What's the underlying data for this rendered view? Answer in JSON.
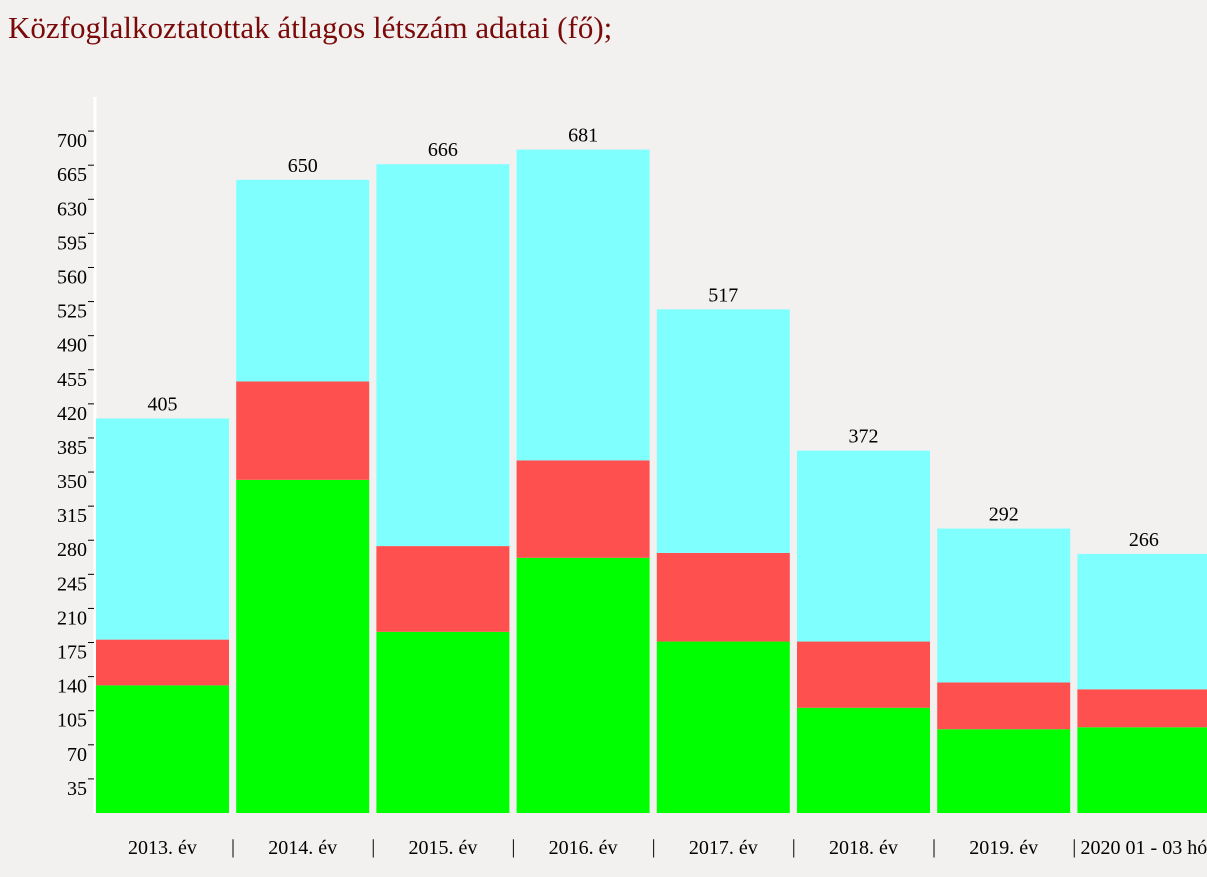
{
  "chart_data": {
    "type": "stacked-bar",
    "title": "Közfoglalkoztatottak átlagos létszám adatai (fő);",
    "categories": [
      "2013. év",
      "2014. év",
      "2015. év",
      "2016. év",
      "2017. év",
      "2018. év",
      "2019. év",
      "2020 01 - 03 hó"
    ],
    "series": [
      {
        "color": "#00ff00",
        "values": [
          131,
          342,
          186,
          262,
          176,
          108,
          86,
          88
        ]
      },
      {
        "color": "#ff5050",
        "values": [
          47,
          101,
          88,
          100,
          91,
          68,
          48,
          39
        ]
      },
      {
        "color": "#80ffff",
        "values": [
          227,
          207,
          392,
          319,
          250,
          196,
          158,
          139
        ]
      }
    ],
    "totals": [
      405,
      650,
      666,
      681,
      517,
      372,
      292,
      266
    ],
    "ylim": [
      0,
      735
    ],
    "yticks": [
      35,
      70,
      105,
      140,
      175,
      210,
      245,
      280,
      315,
      350,
      385,
      420,
      455,
      490,
      525,
      560,
      595,
      630,
      665,
      700
    ]
  }
}
